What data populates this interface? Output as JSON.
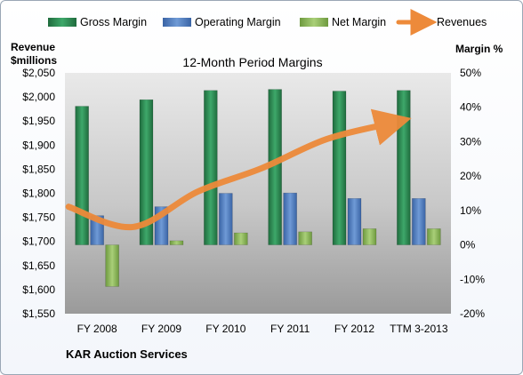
{
  "chart_data": {
    "type": "bar",
    "title": "12-Month Period Margins",
    "company": "KAR Auction Services",
    "categories": [
      "FY 2008",
      "FY 2009",
      "FY 2010",
      "FY 2011",
      "FY 2012",
      "TTM 3-2013"
    ],
    "series": [
      {
        "name": "Gross Margin",
        "axis": "right",
        "kind": "bar",
        "color": "#2e8b57",
        "values": [
          40.3,
          42.2,
          44.9,
          45.2,
          44.7,
          44.9
        ]
      },
      {
        "name": "Operating Margin",
        "axis": "right",
        "kind": "bar",
        "color": "#4f7fc0",
        "values": [
          8.5,
          11.1,
          15.0,
          15.1,
          13.5,
          13.5
        ]
      },
      {
        "name": "Net Margin",
        "axis": "right",
        "kind": "bar",
        "color": "#8fbf5a",
        "values": [
          -12.1,
          1.2,
          3.5,
          3.8,
          4.7,
          4.7
        ]
      },
      {
        "name": "Revenues",
        "axis": "left",
        "kind": "line",
        "color": "#ed8a3a",
        "values": [
          1772,
          1730,
          1803,
          1852,
          1912,
          1945
        ]
      }
    ],
    "y_left": {
      "label_line1": "Revenue",
      "label_line2": "$millions",
      "ticks": [
        "$1,550",
        "$1,600",
        "$1,650",
        "$1,700",
        "$1,750",
        "$1,800",
        "$1,850",
        "$1,900",
        "$1,950",
        "$2,000",
        "$2,050"
      ],
      "min": 1550,
      "max": 2050
    },
    "y_right": {
      "label": "Margin %",
      "ticks": [
        "-20%",
        "-10%",
        "0%",
        "10%",
        "20%",
        "30%",
        "40%",
        "50%"
      ],
      "min": -20,
      "max": 50
    },
    "legend_position": "top",
    "grid": false
  }
}
